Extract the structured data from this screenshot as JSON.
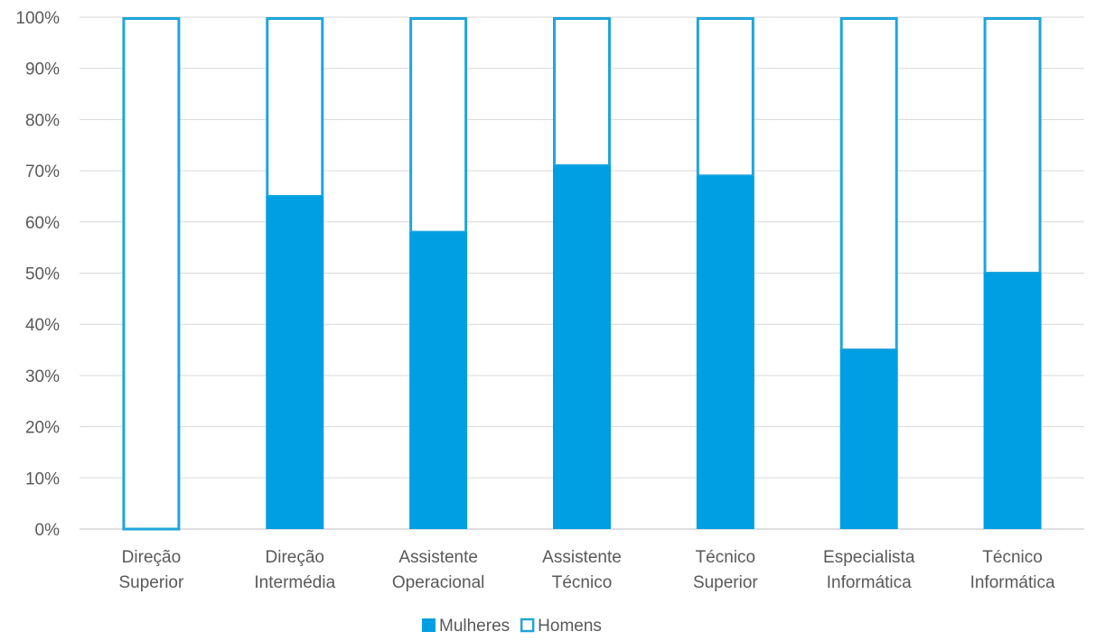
{
  "chart_data": {
    "type": "bar",
    "stacked": true,
    "categories": [
      [
        "Direção",
        "Superior"
      ],
      [
        "Direção",
        "Intermédia"
      ],
      [
        "Assistente",
        "Operacional"
      ],
      [
        "Assistente",
        "Técnico"
      ],
      [
        "Técnico",
        "Superior"
      ],
      [
        "Especialista",
        "Informática"
      ],
      [
        "Técnico",
        "Informática"
      ]
    ],
    "series": [
      {
        "name": "Mulheres",
        "values": [
          0,
          65,
          58,
          71,
          69,
          35,
          50
        ],
        "style": "filled"
      },
      {
        "name": "Homens",
        "values": [
          100,
          35,
          42,
          29,
          31,
          65,
          50
        ],
        "style": "outline"
      }
    ],
    "y_ticks": [
      "0%",
      "10%",
      "20%",
      "30%",
      "40%",
      "50%",
      "60%",
      "70%",
      "80%",
      "90%",
      "100%"
    ],
    "ylim": [
      0,
      100
    ],
    "grid": true,
    "legend_position": "bottom",
    "colors": {
      "accent": "#009fe3",
      "outline": "#1ea6da",
      "grid": "#d9d9d9",
      "text": "#595959"
    }
  }
}
